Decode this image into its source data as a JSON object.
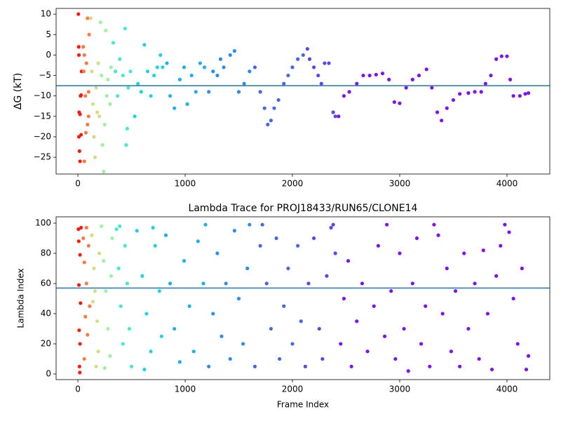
{
  "chart_data": [
    {
      "type": "scatter",
      "ylabel": "ΔG (kT)",
      "xlim": [
        -203,
        4399
      ],
      "ylim": [
        -29.1,
        11.4
      ],
      "xticks": [
        0,
        1000,
        2000,
        3000,
        4000
      ],
      "yticks": [
        {
          "value": -25,
          "label": "−25"
        },
        {
          "value": -20,
          "label": "−20"
        },
        {
          "value": -15,
          "label": "−15"
        },
        {
          "value": -10,
          "label": "−10"
        },
        {
          "value": -5,
          "label": "−5"
        },
        0,
        5,
        10
      ],
      "hline": {
        "value": -7.5,
        "color": "#1f77b4"
      },
      "series": [
        {
          "color": "#ff1a0d",
          "x": [
            5,
            8,
            10,
            12,
            10,
            15,
            20,
            25,
            30,
            35,
            30,
            20
          ],
          "values": [
            10,
            2,
            0,
            -14,
            -20,
            -23.5,
            -26,
            -10,
            -19.5,
            -4,
            -9.8,
            -14.5
          ]
        },
        {
          "color": "#ff7a40",
          "x": [
            50,
            60,
            55,
            70,
            80,
            90,
            100,
            90,
            60,
            75,
            100,
            105
          ],
          "values": [
            2,
            0,
            -4,
            -10,
            -2,
            9,
            -9,
            -17,
            -26,
            -19,
            -15,
            5
          ]
        },
        {
          "color": "#d8dc80",
          "x": [
            120,
            130,
            140,
            150,
            160,
            170,
            180,
            190,
            200
          ],
          "values": [
            9,
            -4,
            -12,
            -20,
            -25,
            -8,
            -14,
            -2,
            -15
          ]
        },
        {
          "color": "#9cf3a0",
          "x": [
            210,
            220,
            230,
            240,
            250,
            260,
            270,
            280,
            300,
            310
          ],
          "values": [
            8,
            -5,
            -22,
            -28.5,
            -17,
            6,
            -10,
            -6,
            -12,
            -3
          ]
        },
        {
          "color": "#40eccc",
          "x": [
            330,
            350,
            370,
            390,
            420,
            440,
            450,
            460,
            470,
            490
          ],
          "values": [
            3,
            -4,
            -10,
            -1,
            -5,
            6.5,
            -22,
            -18,
            -8,
            -4
          ]
        },
        {
          "color": "#1ed3e2",
          "x": [
            530,
            560,
            590,
            620,
            650,
            680,
            710,
            740,
            770,
            790
          ],
          "values": [
            -15,
            -7,
            -9,
            2.5,
            -4,
            -10,
            -5,
            -3,
            0,
            -3
          ]
        },
        {
          "color": "#1eb0ee",
          "x": [
            830,
            860,
            900,
            950,
            990,
            1020,
            1060,
            1100,
            1140,
            1180
          ],
          "values": [
            -2,
            -10,
            -13,
            -6,
            -3,
            -12,
            -5,
            -9,
            -2,
            -3
          ]
        },
        {
          "color": "#2c8cf5",
          "x": [
            1220,
            1260,
            1300,
            1330,
            1360,
            1420,
            1460,
            1500,
            1550,
            1600
          ],
          "values": [
            -9,
            -4,
            -5,
            -1,
            -3,
            0,
            1,
            -9,
            -7,
            -4
          ]
        },
        {
          "color": "#4466f0",
          "x": [
            1650,
            1700,
            1740,
            1770,
            1800,
            1830,
            1870,
            1920,
            1960,
            2000,
            2050,
            2100
          ],
          "values": [
            -3,
            -9,
            -13,
            -17,
            -16,
            -13,
            -11,
            -7,
            -5,
            -3,
            -1,
            0
          ]
        },
        {
          "color": "#5a45ee",
          "x": [
            2140,
            2160,
            2200,
            2240,
            2270,
            2300,
            2340,
            2380,
            2400
          ],
          "values": [
            1.5,
            -1,
            -3,
            -5,
            -7,
            -2,
            -2,
            -14,
            -15
          ]
        },
        {
          "color": "#7f10ff",
          "x": [
            2430,
            2480,
            2530,
            2600,
            2660,
            2720,
            2780,
            2840,
            2900,
            2950,
            3000,
            3060,
            3120,
            3180,
            3250,
            3300,
            3350,
            3390,
            3440,
            3500,
            3560,
            3640,
            3700,
            3760,
            3800,
            3850,
            3900,
            3950,
            4000,
            4030,
            4060,
            4120,
            4170,
            4200
          ],
          "values": [
            -15,
            -10,
            -9,
            -7,
            -5,
            -5,
            -4.8,
            -4.5,
            -6,
            -11.5,
            -11.8,
            -8,
            -6,
            -5,
            -3.5,
            -8,
            -14,
            -16,
            -13,
            -11,
            -9.5,
            -9.3,
            -9,
            -9,
            -7,
            -5,
            -1,
            -0.3,
            -0.3,
            -6,
            -10,
            -10,
            -9.5,
            -9.3
          ]
        }
      ]
    },
    {
      "type": "scatter",
      "title": "Lambda Trace for PROJ18433/RUN65/CLONE14",
      "xlabel": "Frame Index",
      "ylabel": "Lambda Index",
      "xlim": [
        -203,
        4399
      ],
      "ylim": [
        -3.7,
        104.2
      ],
      "xticks": [
        0,
        1000,
        2000,
        3000,
        4000
      ],
      "yticks": [
        0,
        20,
        40,
        60,
        80,
        100
      ],
      "hline": {
        "value": 57,
        "color": "#1f77b4"
      },
      "series": [
        {
          "color": "#ff1a0d",
          "x": [
            5,
            8,
            10,
            12,
            15,
            18,
            20,
            25,
            30,
            20
          ],
          "values": [
            96,
            88,
            59,
            29,
            5,
            1,
            79,
            47,
            97,
            20
          ]
        },
        {
          "color": "#ff7a40",
          "x": [
            50,
            60,
            70,
            80,
            90,
            100,
            60,
            110,
            80
          ],
          "values": [
            90,
            74,
            38,
            60,
            26,
            85,
            10,
            45,
            97
          ]
        },
        {
          "color": "#d8dc80",
          "x": [
            130,
            150,
            160,
            180,
            190,
            200,
            170,
            140
          ],
          "values": [
            92,
            70,
            55,
            35,
            15,
            80,
            5,
            48
          ]
        },
        {
          "color": "#9cf3a0",
          "x": [
            220,
            240,
            260,
            280,
            300,
            320,
            250,
            310
          ],
          "values": [
            98,
            75,
            55,
            30,
            12,
            90,
            4,
            65
          ]
        },
        {
          "color": "#40eccc",
          "x": [
            360,
            380,
            400,
            420,
            440,
            460,
            480,
            500,
            390
          ],
          "values": [
            96,
            70,
            45,
            20,
            85,
            60,
            30,
            5,
            98
          ]
        },
        {
          "color": "#1ed3e2",
          "x": [
            550,
            600,
            640,
            680,
            720,
            760,
            780,
            620,
            700
          ],
          "values": [
            95,
            65,
            40,
            15,
            85,
            55,
            25,
            3,
            97
          ]
        },
        {
          "color": "#1eb0ee",
          "x": [
            820,
            860,
            900,
            950,
            990,
            1040,
            1080,
            1120,
            1170,
            1190
          ],
          "values": [
            92,
            60,
            30,
            8,
            75,
            45,
            15,
            88,
            60,
            99
          ]
        },
        {
          "color": "#2c8cf5",
          "x": [
            1220,
            1260,
            1300,
            1340,
            1380,
            1420,
            1460,
            1500,
            1540,
            1580,
            1600
          ],
          "values": [
            5,
            40,
            80,
            25,
            60,
            10,
            95,
            50,
            20,
            70,
            99
          ]
        },
        {
          "color": "#4466f0",
          "x": [
            1650,
            1700,
            1720,
            1760,
            1800,
            1850,
            1880,
            1920,
            1960,
            2000,
            2050,
            2080
          ],
          "values": [
            5,
            85,
            99,
            60,
            30,
            90,
            10,
            45,
            70,
            20,
            85,
            35
          ]
        },
        {
          "color": "#5a45ee",
          "x": [
            2120,
            2150,
            2200,
            2250,
            2280,
            2320,
            2360,
            2380,
            2400
          ],
          "values": [
            5,
            60,
            90,
            30,
            10,
            65,
            97,
            99,
            80
          ]
        },
        {
          "color": "#7f10ff",
          "x": [
            2450,
            2480,
            2520,
            2550,
            2600,
            2650,
            2700,
            2760,
            2800,
            2860,
            2880,
            2920,
            2960,
            3000,
            3040,
            3080,
            3120,
            3160,
            3200,
            3240,
            3280,
            3320,
            3360,
            3400,
            3440,
            3480,
            3520,
            3560,
            3600,
            3640,
            3700,
            3740,
            3780,
            3820,
            3860,
            3900,
            3940,
            3980,
            4020,
            4060,
            4100,
            4140,
            4180,
            4200
          ],
          "values": [
            20,
            50,
            75,
            5,
            35,
            60,
            15,
            45,
            85,
            25,
            99,
            55,
            10,
            80,
            30,
            2,
            60,
            90,
            20,
            45,
            5,
            99,
            92,
            40,
            70,
            15,
            55,
            5,
            80,
            30,
            60,
            10,
            82,
            40,
            3,
            65,
            85,
            99,
            94,
            50,
            20,
            70,
            3,
            12
          ]
        }
      ]
    }
  ]
}
